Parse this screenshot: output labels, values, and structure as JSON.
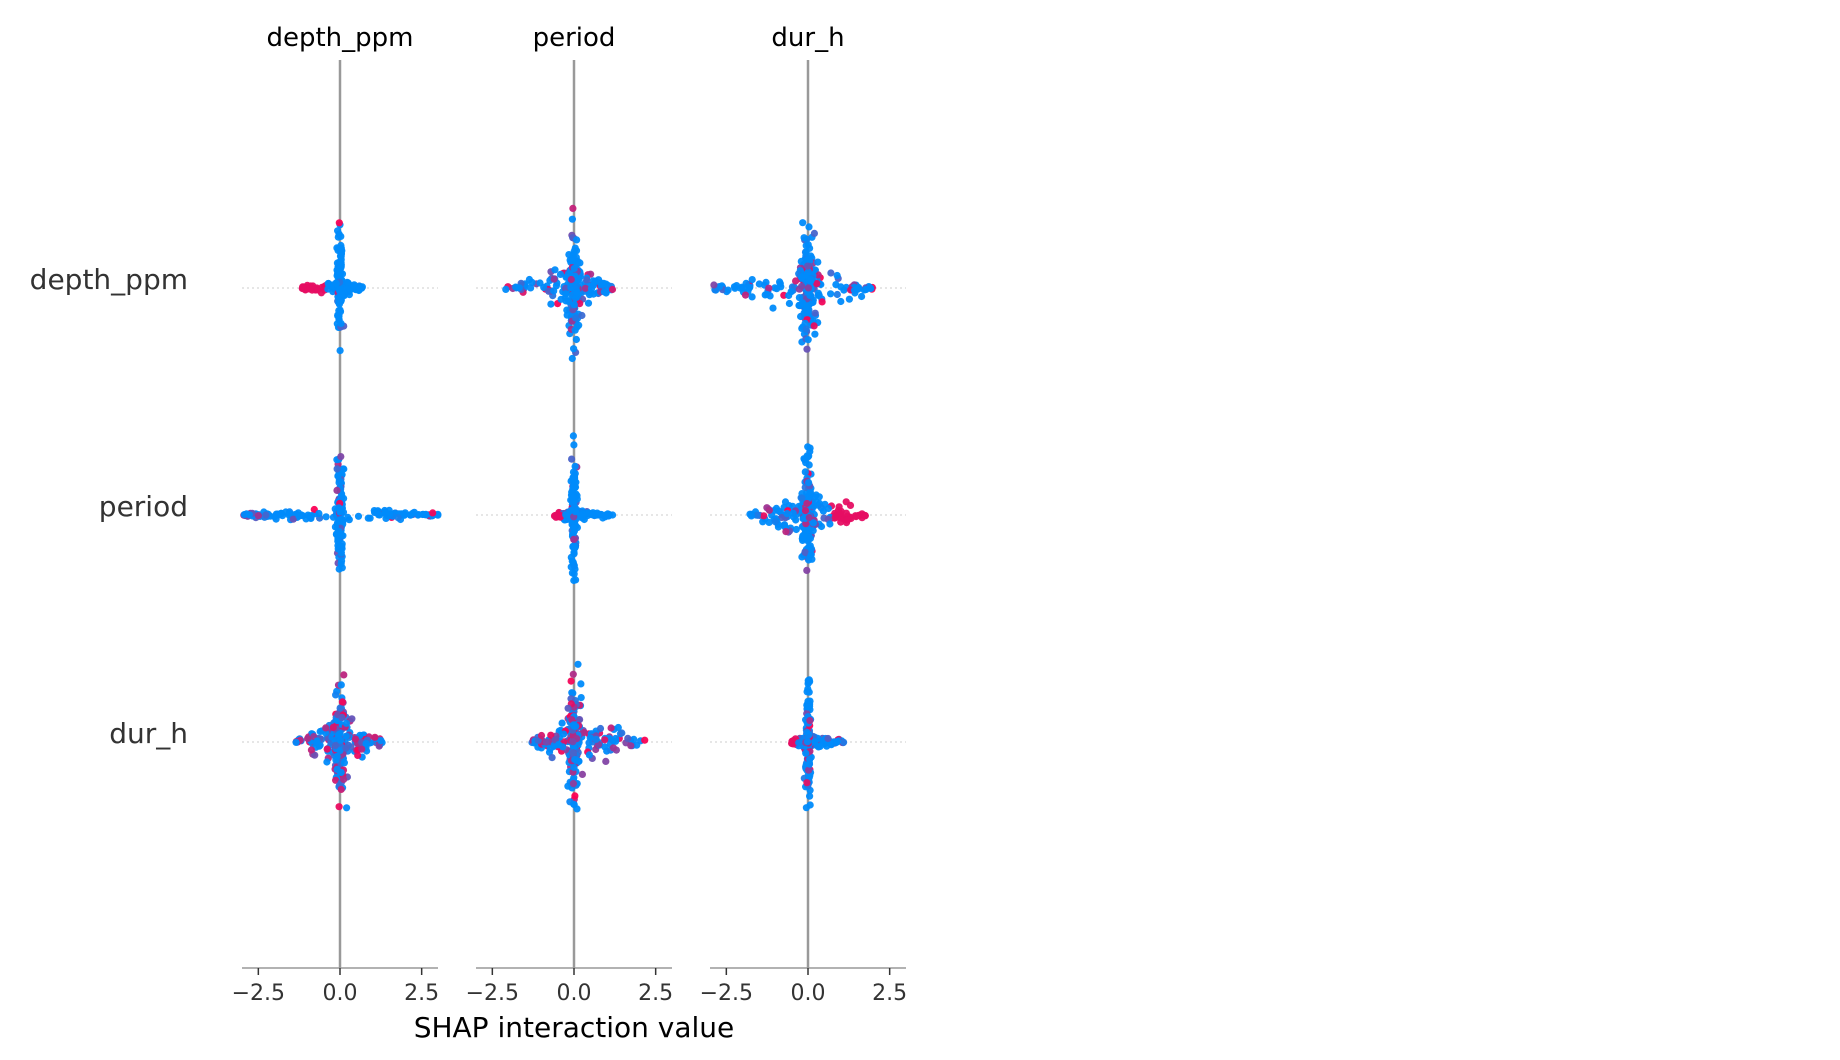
{
  "chart_data": {
    "type": "scatter",
    "subtype": "shap-interaction-beeswarm-matrix",
    "features": [
      "depth_ppm",
      "period",
      "dur_h"
    ],
    "xlabel": "SHAP interaction value",
    "xlim": [
      -3,
      3
    ],
    "xticks": [
      -2.5,
      0.0,
      2.5
    ],
    "xtick_labels": [
      "−2.5",
      "0.0",
      "2.5"
    ],
    "colors": {
      "low": "#008bfb",
      "high": "#ff0052",
      "axis": "#999999",
      "zero_line": "#999999"
    },
    "cells": [
      {
        "row": "depth_ppm",
        "col": "depth_ppm",
        "x_range": [
          -1.2,
          0.7
        ],
        "spread": 0.15,
        "red_mix": 0.1,
        "red_side": "neg",
        "shape": "narrow"
      },
      {
        "row": "depth_ppm",
        "col": "period",
        "x_range": [
          -2.1,
          1.2
        ],
        "spread": 0.3,
        "red_mix": 0.3,
        "red_side": "mix",
        "shape": "star"
      },
      {
        "row": "depth_ppm",
        "col": "dur_h",
        "x_range": [
          -3.0,
          2.0
        ],
        "spread": 0.4,
        "red_mix": 0.3,
        "red_side": "mix",
        "shape": "star"
      },
      {
        "row": "period",
        "col": "depth_ppm",
        "x_range": [
          -3.0,
          3.0
        ],
        "spread": 0.2,
        "red_mix": 0.2,
        "red_side": "mix",
        "shape": "cross"
      },
      {
        "row": "period",
        "col": "period",
        "x_range": [
          -0.6,
          1.2
        ],
        "spread": 0.15,
        "red_mix": 0.2,
        "red_side": "neg",
        "shape": "narrow"
      },
      {
        "row": "period",
        "col": "dur_h",
        "x_range": [
          -1.8,
          1.8
        ],
        "spread": 0.35,
        "red_mix": 0.3,
        "red_side": "pos",
        "shape": "star"
      },
      {
        "row": "dur_h",
        "col": "depth_ppm",
        "x_range": [
          -1.4,
          1.3
        ],
        "spread": 0.3,
        "red_mix": 0.6,
        "red_side": "mix",
        "shape": "star"
      },
      {
        "row": "dur_h",
        "col": "period",
        "x_range": [
          -1.3,
          2.2
        ],
        "spread": 0.35,
        "red_mix": 0.6,
        "red_side": "mix",
        "shape": "star"
      },
      {
        "row": "dur_h",
        "col": "dur_h",
        "x_range": [
          -0.5,
          1.1
        ],
        "spread": 0.15,
        "red_mix": 0.4,
        "red_side": "neg",
        "shape": "narrow"
      }
    ]
  }
}
